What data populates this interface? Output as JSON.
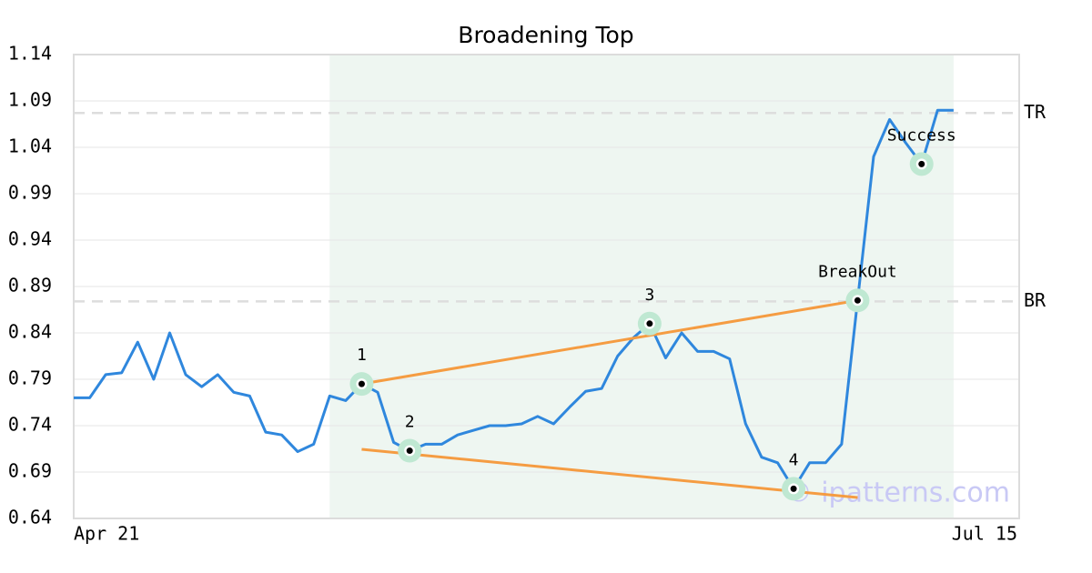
{
  "chart_data": {
    "type": "line",
    "title": "Broadening Top",
    "categories": [
      "Apr 21",
      null,
      null,
      null,
      null,
      null,
      null,
      null,
      null,
      null,
      null,
      null,
      null,
      null,
      null,
      null,
      null,
      null,
      null,
      null,
      null,
      null,
      null,
      null,
      null,
      null,
      null,
      null,
      null,
      null,
      null,
      null,
      null,
      null,
      null,
      null,
      null,
      null,
      null,
      null,
      null,
      null,
      null,
      null,
      null,
      null,
      null,
      null,
      null,
      null,
      null,
      null,
      null,
      null,
      null,
      "Jul 15"
    ],
    "values": [
      0.77,
      0.77,
      0.795,
      0.797,
      0.83,
      0.79,
      0.84,
      0.795,
      0.782,
      0.795,
      0.776,
      0.772,
      0.733,
      0.73,
      0.712,
      0.72,
      0.772,
      0.767,
      0.785,
      0.776,
      0.722,
      0.713,
      0.72,
      0.72,
      0.73,
      0.735,
      0.74,
      0.74,
      0.742,
      0.75,
      0.742,
      0.76,
      0.777,
      0.78,
      0.815,
      0.835,
      0.85,
      0.813,
      0.84,
      0.82,
      0.82,
      0.812,
      0.742,
      0.706,
      0.7,
      0.672,
      0.7,
      0.7,
      0.72,
      0.875,
      1.03,
      1.07,
      1.045,
      1.022,
      1.08,
      1.08
    ],
    "color": "#2f87dd",
    "ylim": [
      0.64,
      1.14
    ],
    "yticks": [
      0.64,
      0.69,
      0.74,
      0.79,
      0.84,
      0.89,
      0.94,
      0.99,
      1.04,
      1.09,
      1.14
    ],
    "grid": true,
    "levels": [
      {
        "label": "TR",
        "value": 1.077
      },
      {
        "label": "BR",
        "value": 0.874
      }
    ],
    "trend_lines": [
      {
        "x": [
          18,
          49
        ],
        "values": [
          0.785,
          0.875
        ],
        "color": "#f59c42"
      },
      {
        "x": [
          18,
          49
        ],
        "values": [
          0.7145,
          0.6625
        ],
        "color": "#f59c42"
      }
    ],
    "annotations": [
      {
        "label": "1",
        "x": 18,
        "value": 0.785
      },
      {
        "label": "2",
        "x": 21,
        "value": 0.713
      },
      {
        "label": "3",
        "x": 36,
        "value": 0.85
      },
      {
        "label": "4",
        "x": 45,
        "value": 0.672
      },
      {
        "label": "BreakOut",
        "x": 49,
        "value": 0.875
      },
      {
        "label": "Success",
        "x": 53,
        "value": 1.022
      }
    ],
    "watermark": "© ipatterns.com"
  }
}
